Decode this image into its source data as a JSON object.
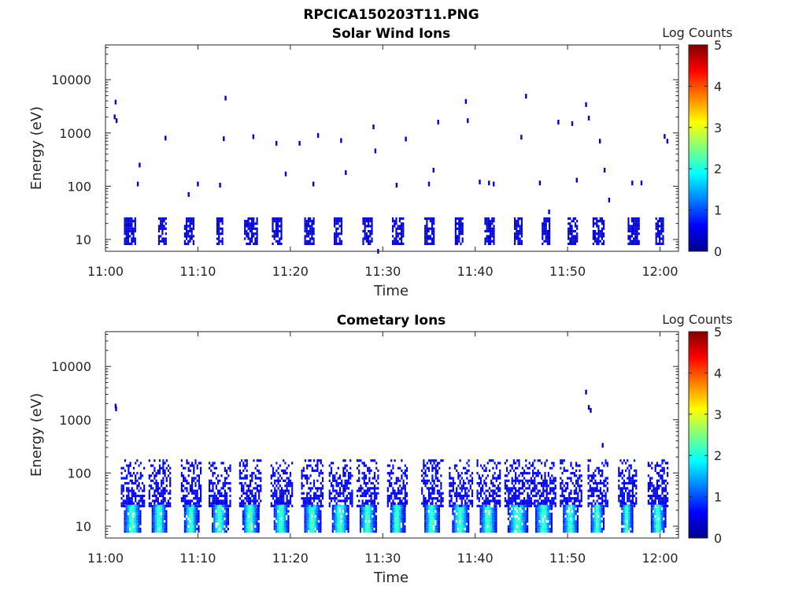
{
  "figure": {
    "title": "RPCICA150203T11.PNG"
  },
  "chart_data": [
    {
      "type": "heatmap",
      "title": "Solar Wind Ions",
      "xlabel": "Time",
      "ylabel": "Energy (eV)",
      "y_scale": "log",
      "ylim": [
        6,
        45000
      ],
      "xlim": [
        "11:00",
        "12:02"
      ],
      "x_ticks": [
        "11:00",
        "11:10",
        "11:20",
        "11:30",
        "11:40",
        "11:50",
        "12:00"
      ],
      "y_ticks": [
        "10",
        "100",
        "1000",
        "10000"
      ],
      "colorbar": {
        "label": "Log Counts",
        "range": [
          0,
          5
        ],
        "ticks": [
          "0",
          "1",
          "2",
          "3",
          "4",
          "5"
        ],
        "colormap": "jet"
      },
      "grid": false,
      "low_energy_bursts": {
        "energy_range_eV": [
          8,
          26
        ],
        "log_counts": 0.3,
        "start_minutes": [
          2.0,
          5.7,
          8.5,
          12.0,
          15.0,
          18.0,
          21.5,
          24.7,
          27.8,
          31.0,
          34.5,
          37.8,
          41.0,
          44.2,
          47.2,
          50.0,
          52.7,
          56.5,
          59.5
        ],
        "duration_minutes": [
          1.2,
          0.9,
          1.0,
          0.6,
          1.4,
          1.0,
          1.0,
          0.9,
          1.0,
          1.2,
          1.0,
          0.8,
          1.0,
          0.8,
          0.9,
          1.0,
          1.2,
          1.3,
          0.8
        ]
      },
      "sparse_points": {
        "log_counts": 0.35,
        "minutes": [
          1.0,
          1.1,
          1.2,
          3.5,
          3.7,
          6.5,
          9.0,
          10.0,
          12.4,
          12.8,
          13.0,
          16.0,
          18.5,
          19.5,
          21.0,
          22.5,
          23.0,
          25.5,
          26.0,
          29.0,
          29.2,
          29.5,
          31.5,
          32.5,
          35.0,
          35.5,
          36.0,
          39.0,
          39.2,
          40.5,
          41.5,
          42.0,
          45.0,
          45.5,
          47.0,
          48.0,
          49.0,
          50.5,
          51.0,
          52.0,
          52.3,
          53.5,
          54.0,
          54.5,
          57.0,
          58.0,
          60.5,
          60.8
        ],
        "energies_eV": [
          2000,
          3800,
          1700,
          110,
          250,
          800,
          70,
          110,
          105,
          780,
          4500,
          850,
          640,
          170,
          640,
          110,
          900,
          720,
          180,
          1300,
          460,
          6,
          105,
          770,
          110,
          200,
          1600,
          3900,
          1700,
          120,
          115,
          110,
          830,
          4900,
          115,
          33,
          1600,
          1500,
          130,
          3400,
          1900,
          700,
          200,
          55,
          115,
          115,
          860,
          700
        ]
      }
    },
    {
      "type": "heatmap",
      "title": "Cometary Ions",
      "xlabel": "Time",
      "ylabel": "Energy (eV)",
      "y_scale": "log",
      "ylim": [
        6,
        45000
      ],
      "xlim": [
        "11:00",
        "12:02"
      ],
      "x_ticks": [
        "11:00",
        "11:10",
        "11:20",
        "11:30",
        "11:40",
        "11:50",
        "12:00"
      ],
      "y_ticks": [
        "10",
        "100",
        "1000",
        "10000"
      ],
      "colorbar": {
        "label": "Log Counts",
        "range": [
          0,
          5
        ],
        "ticks": [
          "0",
          "1",
          "2",
          "3",
          "4",
          "5"
        ],
        "colormap": "jet"
      },
      "grid": false,
      "bursts": {
        "start_minutes": [
          2.0,
          5.0,
          8.5,
          11.5,
          14.8,
          18.2,
          21.5,
          24.5,
          27.5,
          30.8,
          34.5,
          37.5,
          40.5,
          43.5,
          46.5,
          49.5,
          52.5,
          55.8,
          59.0
        ],
        "duration_minutes": [
          1.8,
          1.6,
          1.5,
          1.7,
          1.7,
          1.6,
          1.7,
          1.8,
          1.7,
          1.5,
          1.6,
          1.8,
          1.8,
          2.2,
          1.8,
          1.6,
          1.4,
          1.2,
          1.5
        ],
        "core_energy_eV": [
          8,
          25
        ],
        "core_log_counts": 1.8,
        "halo_energy_eV": [
          25,
          180
        ],
        "halo_log_counts": 0.35
      },
      "sparse_points": {
        "log_counts": 0.35,
        "minutes": [
          1.1,
          1.15,
          52.0,
          52.3,
          52.5,
          53.8
        ],
        "energies_eV": [
          1800,
          1600,
          3300,
          1700,
          1500,
          330
        ]
      }
    }
  ]
}
